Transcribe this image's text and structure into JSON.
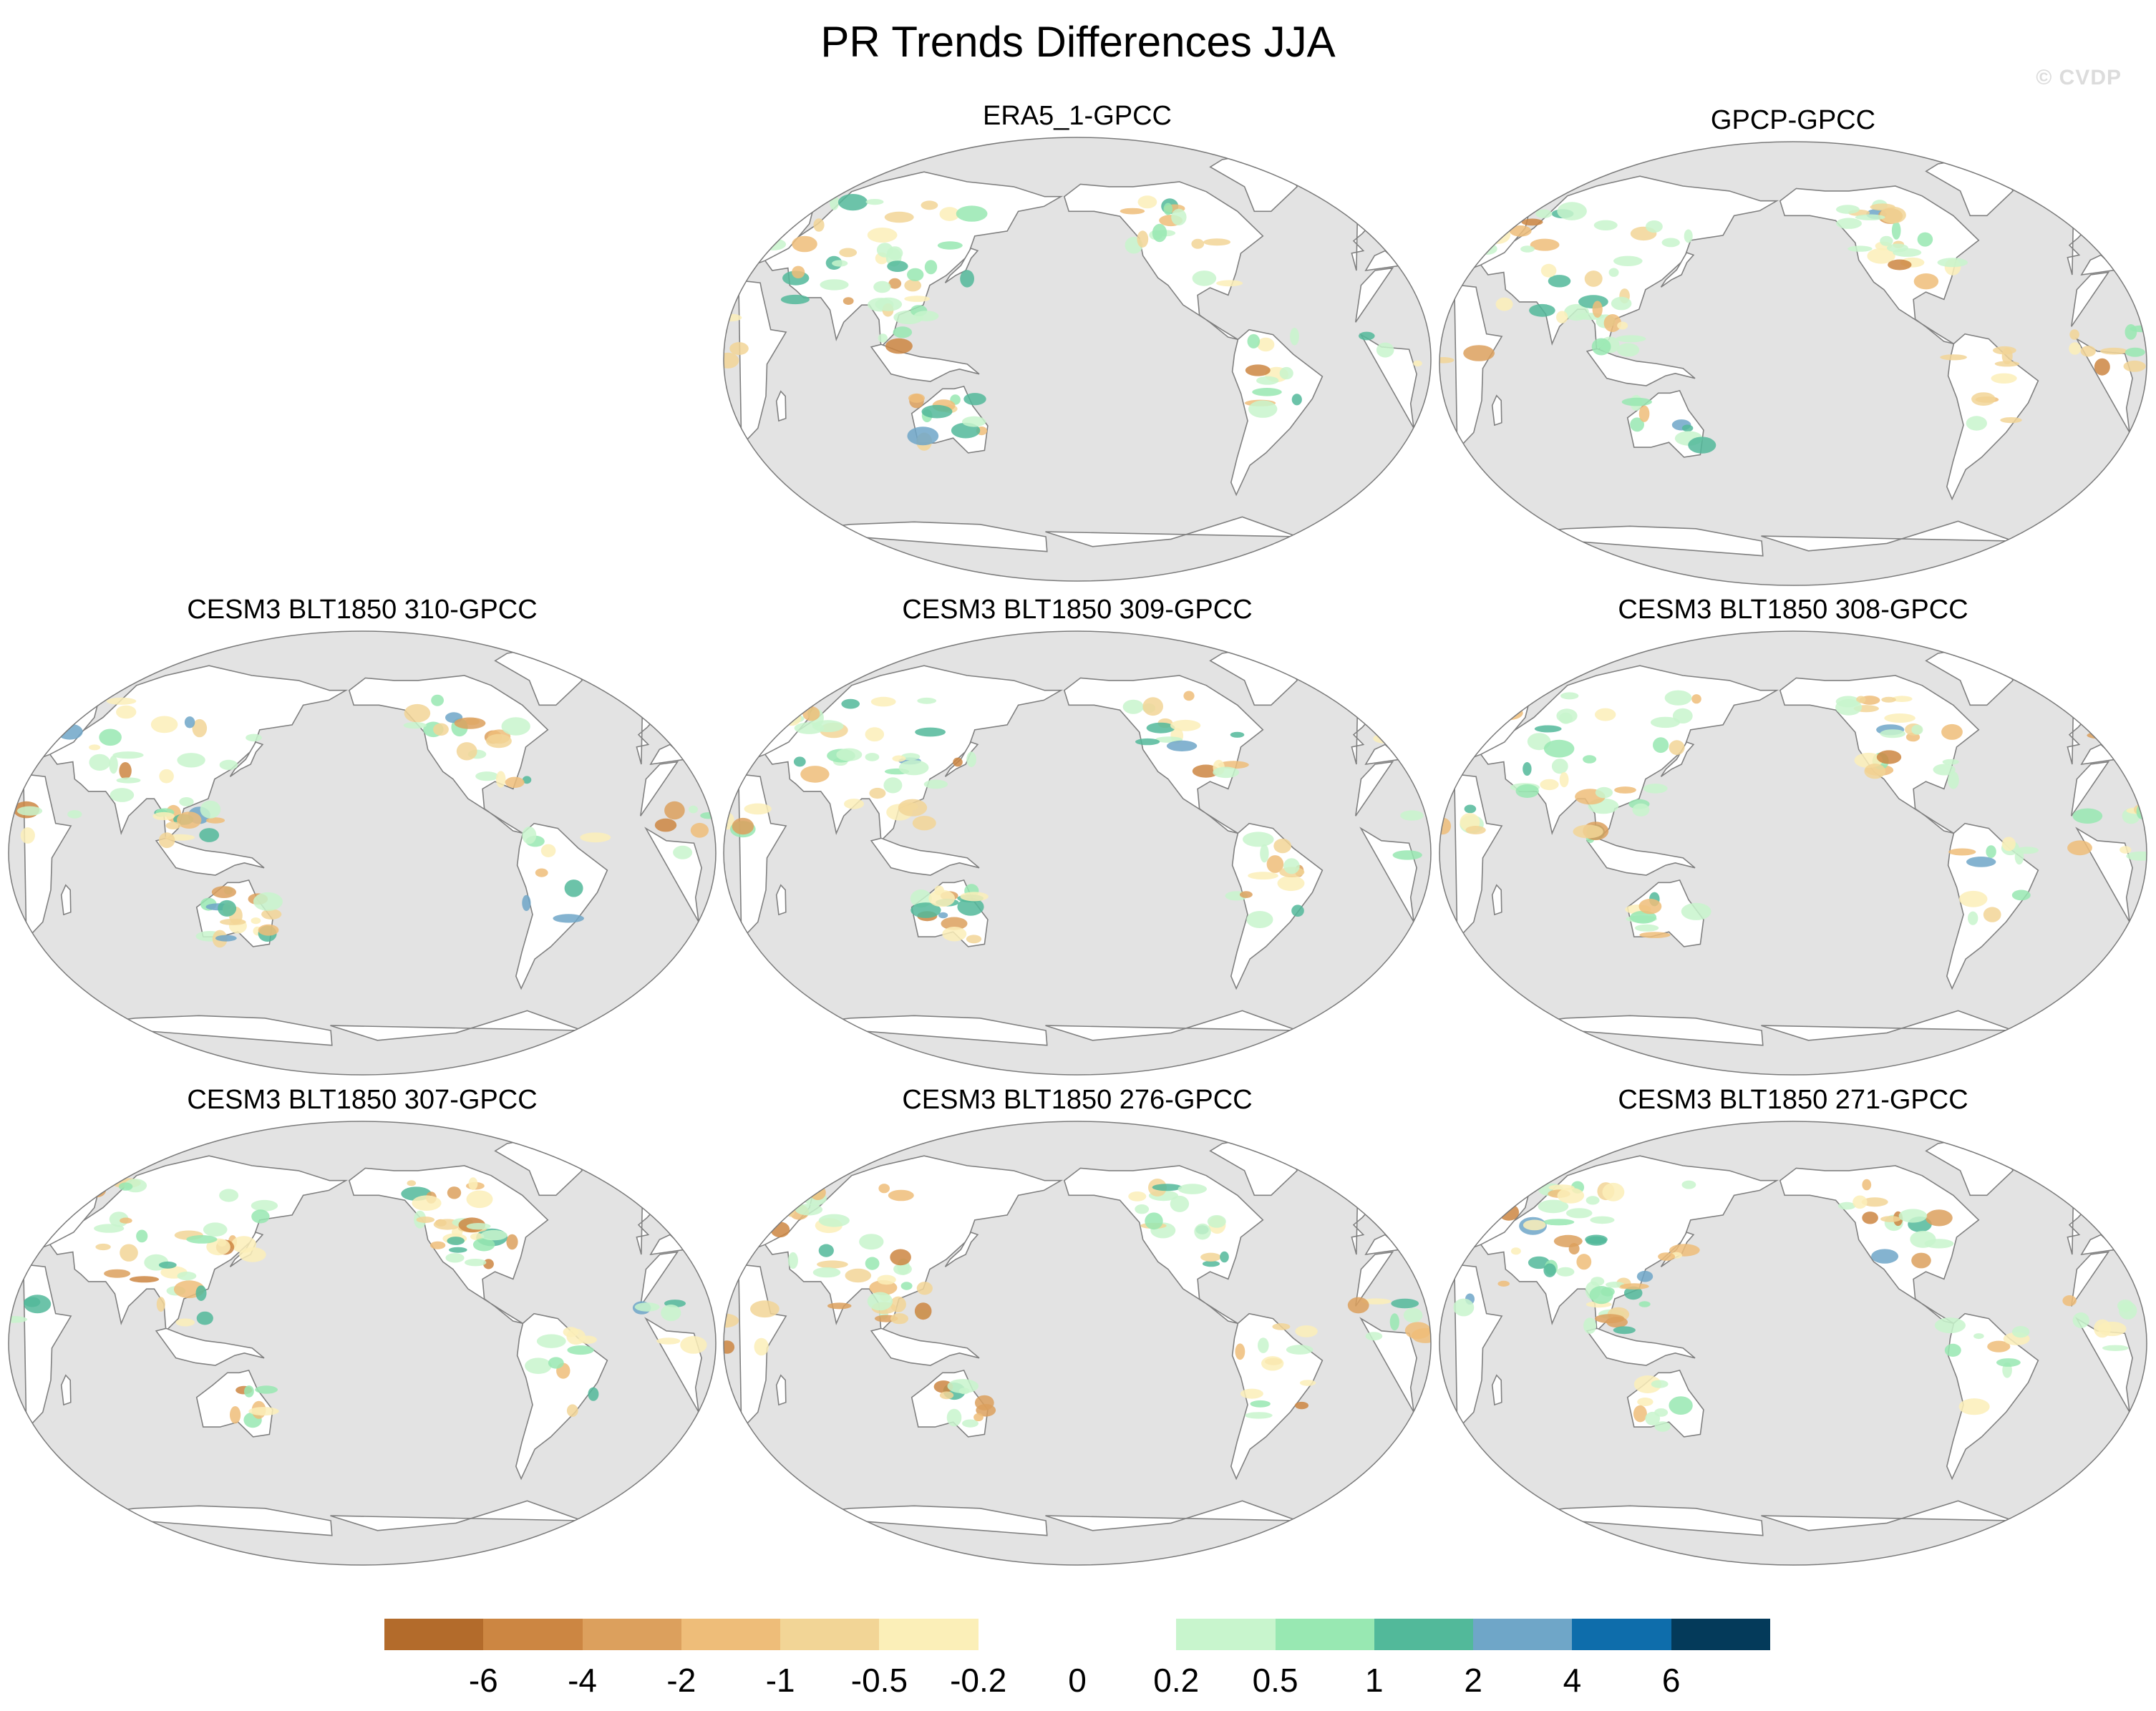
{
  "title": "PR Trends Differences JJA",
  "watermark": "© CVDP",
  "panels": [
    {
      "title": "ERA5_1-GPCC"
    },
    {
      "title": "GPCP-GPCC"
    },
    {
      "title": "CESM3 BLT1850 310-GPCC"
    },
    {
      "title": "CESM3 BLT1850 309-GPCC"
    },
    {
      "title": "CESM3 BLT1850 308-GPCC"
    },
    {
      "title": "CESM3 BLT1850 307-GPCC"
    },
    {
      "title": "CESM3 BLT1850 276-GPCC"
    },
    {
      "title": "CESM3 BLT1850 271-GPCC"
    }
  ],
  "colorbar": {
    "colors": [
      "#b36b2b",
      "#cc8642",
      "#dca05d",
      "#eebd79",
      "#f2d596",
      "#fbefb8",
      "#ffffff",
      "#ffffff",
      "#c8f5cd",
      "#98e8b2",
      "#52b99a",
      "#6fa6c8",
      "#0e6dab",
      "#043a5a"
    ],
    "labels": [
      "-6",
      "-4",
      "-2",
      "-1",
      "-0.5",
      "-0.2",
      "0",
      "0.2",
      "0.5",
      "1",
      "2",
      "4",
      "6"
    ]
  },
  "map": {
    "ocean_color": "#e3e3e3",
    "land_color": "#ffffff",
    "coast_color": "#808080"
  }
}
